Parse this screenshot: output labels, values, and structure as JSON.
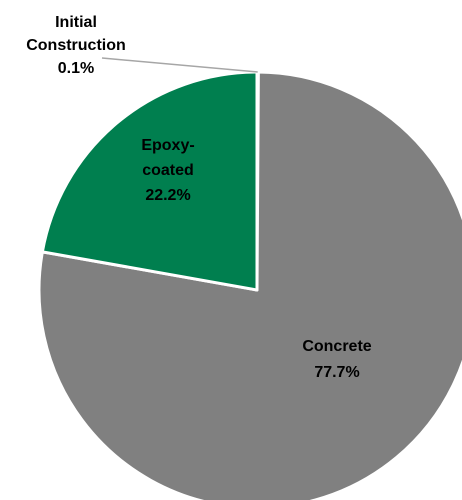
{
  "chart_data": {
    "type": "pie",
    "slices": [
      {
        "label_lines": [
          "Initial",
          "Construction"
        ],
        "value_label": "0.1%",
        "value": 0.1,
        "color": "#A6A6A6",
        "label_color": "#000000",
        "leader_line": true
      },
      {
        "label_lines": [
          "Concrete"
        ],
        "value_label": "77.7%",
        "value": 77.7,
        "color": "#808080",
        "label_color": "#000000",
        "leader_line": false
      },
      {
        "label_lines": [
          "Epoxy-",
          "coated"
        ],
        "value_label": "22.2%",
        "value": 22.2,
        "color": "#007F4F",
        "label_color": "#000000",
        "leader_line": false
      }
    ],
    "start_angle": "12 o'clock",
    "direction": "clockwise",
    "slice_border_color": "#FFFFFF"
  }
}
